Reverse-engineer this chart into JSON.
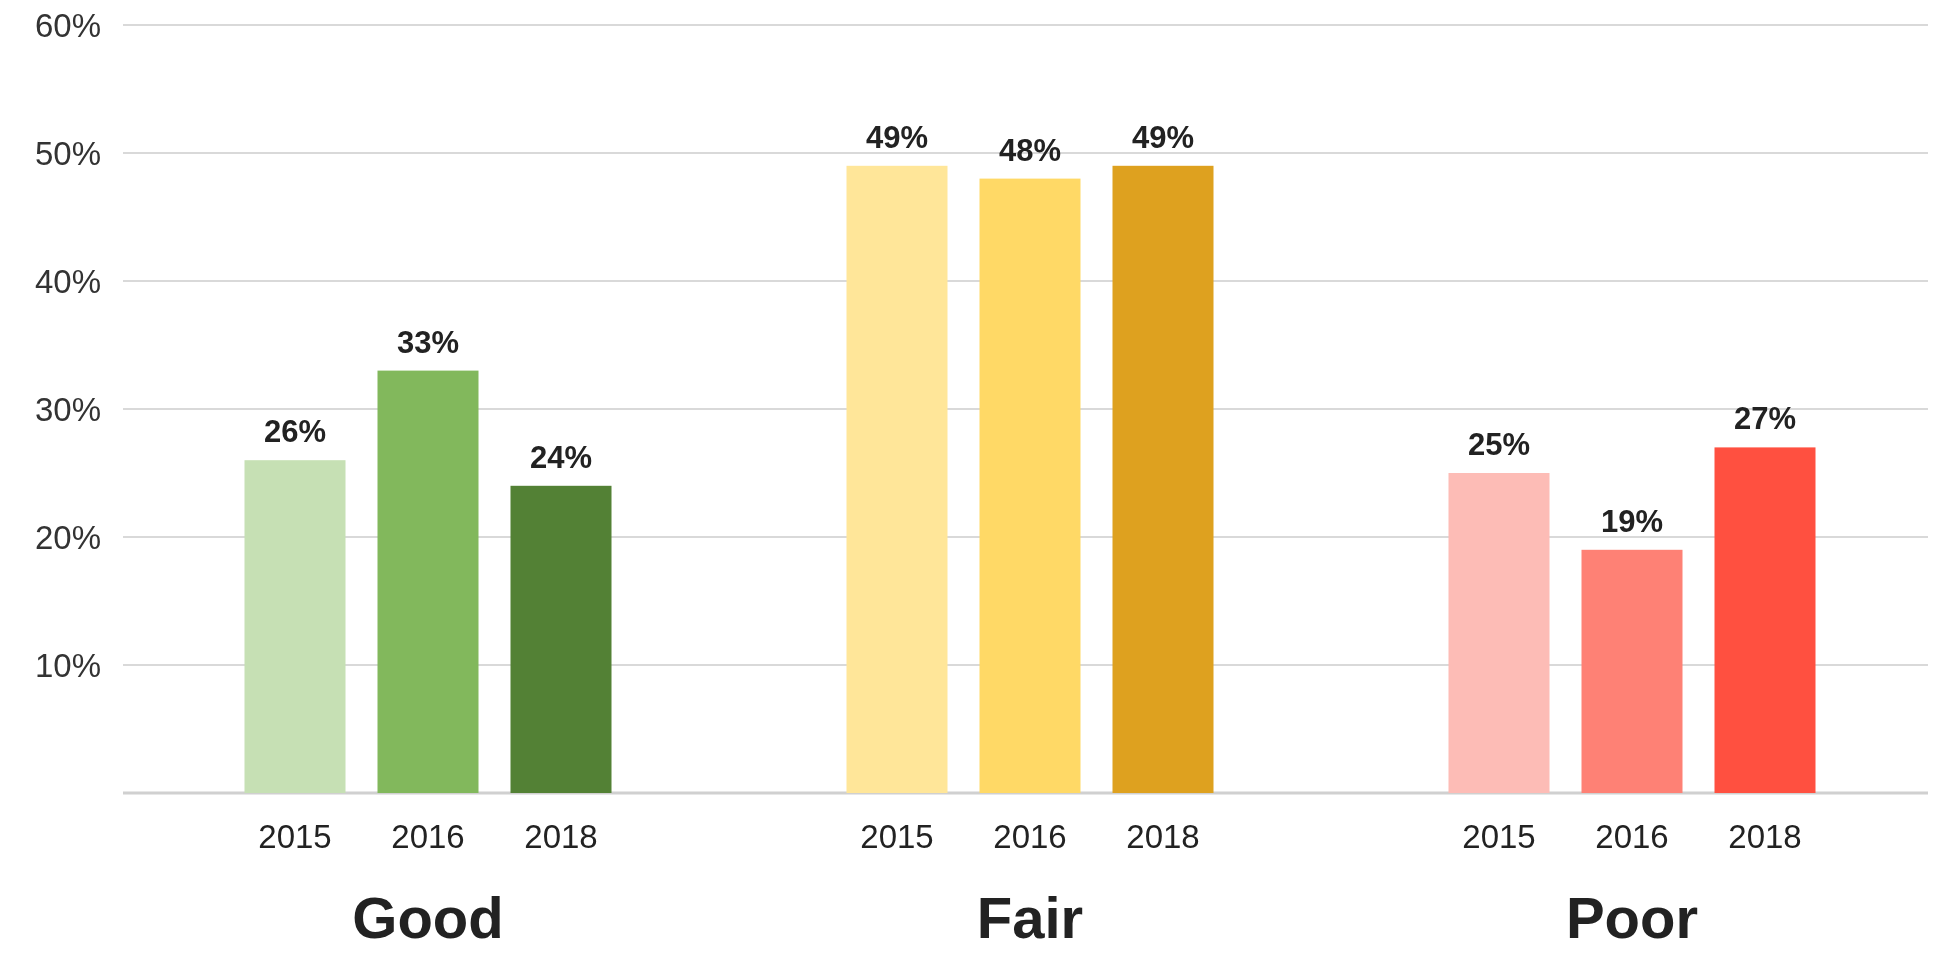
{
  "chart_data": {
    "type": "bar",
    "categories": [
      "2015",
      "2016",
      "2018",
      "2015",
      "2016",
      "2018",
      "2015",
      "2016",
      "2018"
    ],
    "values": [
      26,
      33,
      24,
      49,
      48,
      49,
      25,
      19,
      27
    ],
    "colors": [
      "#c6e0b4",
      "#82b85c",
      "#538135",
      "#ffe699",
      "#ffd966",
      "#dea11f",
      "#fdbcb6",
      "#fe8175",
      "#ff5040"
    ],
    "value_labels": [
      "26%",
      "33%",
      "24%",
      "49%",
      "48%",
      "49%",
      "25%",
      "19%",
      "27%"
    ],
    "annotations": [
      "Good",
      "Fair",
      "Poor"
    ],
    "ylim": [
      0,
      60
    ],
    "yticks": [
      {
        "value": 0,
        "label": null
      },
      {
        "value": 10,
        "label": "10%"
      },
      {
        "value": 20,
        "label": "20%"
      },
      {
        "value": 30,
        "label": "30%"
      },
      {
        "value": 40,
        "label": "40%"
      },
      {
        "value": 50,
        "label": "50%"
      },
      {
        "value": 60,
        "label": "60%"
      }
    ],
    "grid": "y"
  }
}
